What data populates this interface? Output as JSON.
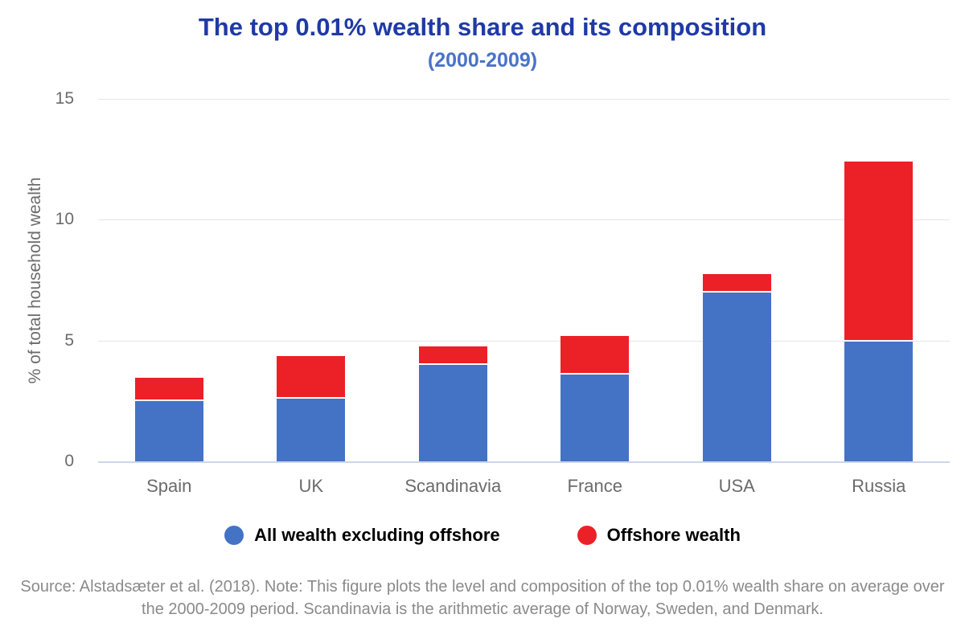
{
  "chart_data": {
    "type": "bar",
    "stacked": true,
    "title": "The top 0.01% wealth share and its composition",
    "subtitle": "(2000-2009)",
    "categories": [
      "Spain",
      "UK",
      "Scandinavia",
      "France",
      "USA",
      "Russia"
    ],
    "series": [
      {
        "name": "All wealth excluding offshore",
        "color": "#4473C5",
        "values": [
          2.5,
          2.6,
          4.0,
          3.6,
          7.0,
          4.95
        ]
      },
      {
        "name": "Offshore wealth",
        "color": "#EC2027",
        "values": [
          0.95,
          1.75,
          0.75,
          1.6,
          0.75,
          7.45
        ]
      }
    ],
    "xlabel": "",
    "ylabel": "% of total household wealth",
    "ylim": [
      0,
      15
    ],
    "yticks": [
      0,
      5,
      10,
      15
    ],
    "grid": true,
    "legend_position": "bottom"
  },
  "caption": {
    "line1": "Source: Alstadsæter et al. (2018). Note: This figure plots the level and composition of the top 0.01% wealth share on average over",
    "line2": "the 2000-2009 period. Scandinavia is the arithmetic average of Norway, Sweden, and Denmark."
  },
  "colors": {
    "title": "#1F3AA6",
    "subtitle": "#4A72C8",
    "bar_blue": "#4473C5",
    "bar_red": "#EC2027",
    "axis_text": "#6B6B6B",
    "caption_text": "#8A8A8A",
    "gridline": "#E6E6E6",
    "baseline": "#CCD6EB",
    "legend_text": "#000000"
  }
}
